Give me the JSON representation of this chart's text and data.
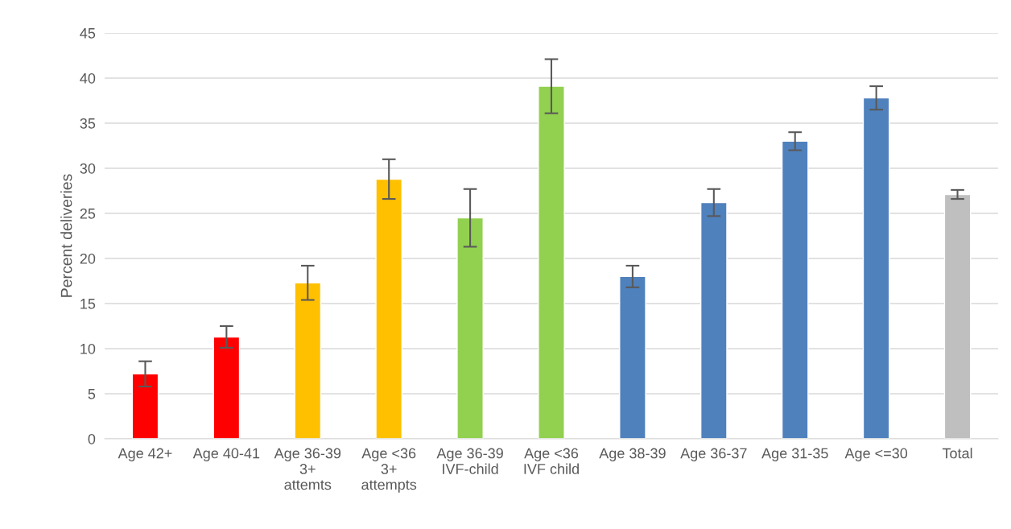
{
  "chart_data": {
    "type": "bar",
    "ylabel": "Percent deliveries",
    "categories": [
      "Age 42+",
      "Age 40-41",
      "Age 36-39\n3+\nattemts",
      "Age <36\n3+\nattempts",
      "Age 36-39\nIVF-child",
      "Age <36\nIVF child",
      "Age 38-39",
      "Age 36-37",
      "Age 31-35",
      "Age <=30",
      "Total"
    ],
    "values": [
      7.2,
      11.3,
      17.3,
      28.8,
      24.5,
      39.1,
      18.0,
      26.2,
      33.0,
      37.8,
      27.1
    ],
    "errors": [
      1.4,
      1.2,
      1.9,
      2.2,
      3.2,
      3.0,
      1.2,
      1.5,
      1.0,
      1.3,
      0.5
    ],
    "colors": [
      "#ff0000",
      "#ff0000",
      "#ffc000",
      "#ffc000",
      "#92d050",
      "#92d050",
      "#4f81bd",
      "#4f81bd",
      "#4f81bd",
      "#4f81bd",
      "#bfbfbf"
    ],
    "ylim": [
      0,
      45
    ],
    "yticks": [
      0,
      5,
      10,
      15,
      20,
      25,
      30,
      35,
      40,
      45
    ],
    "grid": "y"
  }
}
